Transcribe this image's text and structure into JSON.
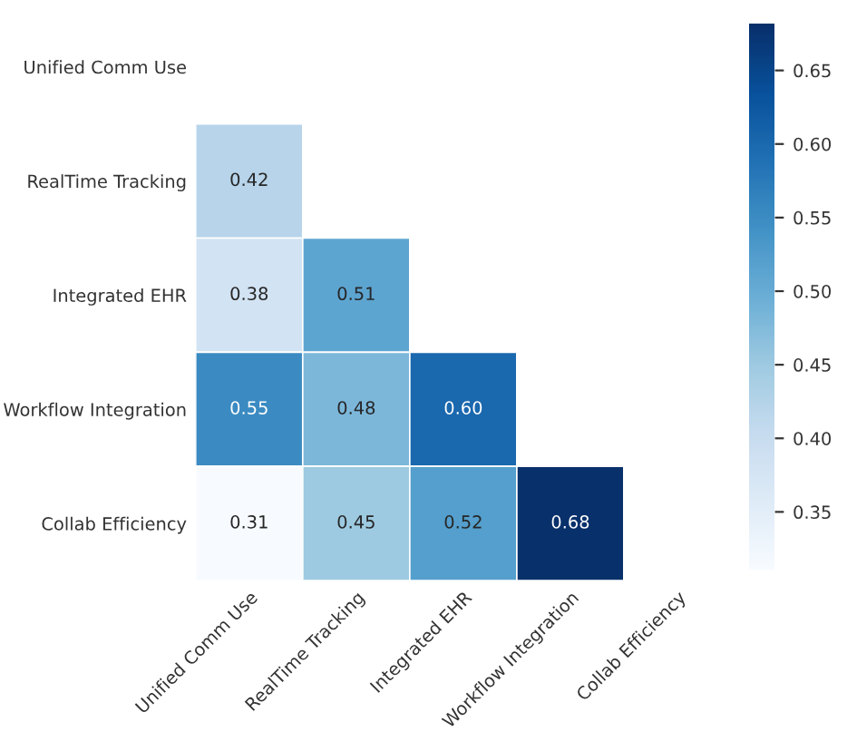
{
  "chart_data": {
    "type": "heatmap",
    "categories": [
      "Unified Comm Use",
      "RealTime Tracking",
      "Integrated EHR",
      "Workflow Integration",
      "Collab Efficiency"
    ],
    "y_categories": [
      "Unified Comm Use",
      "RealTime Tracking",
      "Integrated EHR",
      "Workflow Integration",
      "Collab Efficiency"
    ],
    "cells": [
      [
        null,
        null,
        null,
        null,
        null
      ],
      [
        0.42,
        null,
        null,
        null,
        null
      ],
      [
        0.38,
        0.51,
        null,
        null,
        null
      ],
      [
        0.55,
        0.48,
        0.6,
        null,
        null
      ],
      [
        0.31,
        0.45,
        0.52,
        0.68,
        null
      ]
    ],
    "cell_labels": [
      [
        null,
        null,
        null,
        null,
        null
      ],
      [
        "0.42",
        null,
        null,
        null,
        null
      ],
      [
        "0.38",
        "0.51",
        null,
        null,
        null
      ],
      [
        "0.55",
        "0.48",
        "0.60",
        null,
        null
      ],
      [
        "0.31",
        "0.45",
        "0.52",
        "0.68",
        null
      ]
    ],
    "clim": [
      0.31,
      0.68
    ],
    "cticks": [
      {
        "value": 0.35,
        "label": "0.35"
      },
      {
        "value": 0.4,
        "label": "0.40"
      },
      {
        "value": 0.45,
        "label": "0.45"
      },
      {
        "value": 0.5,
        "label": "0.50"
      },
      {
        "value": 0.55,
        "label": "0.55"
      },
      {
        "value": 0.6,
        "label": "0.60"
      },
      {
        "value": 0.65,
        "label": "0.65"
      }
    ]
  }
}
